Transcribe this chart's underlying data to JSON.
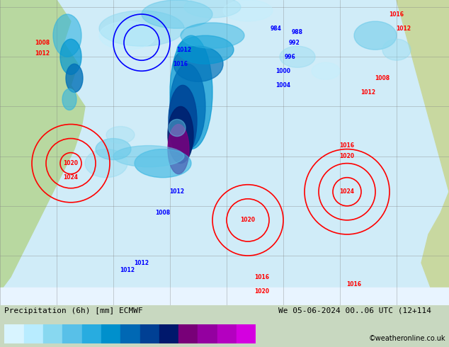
{
  "title_left": "Precipitation (6h) [mm] ECMWF",
  "title_right": "We 05-06-2024 00..06 UTC (12+114",
  "credit": "©weatheronline.co.uk",
  "colorbar_levels": [
    0.1,
    0.5,
    1,
    2,
    5,
    10,
    15,
    20,
    25,
    30,
    35,
    40,
    45,
    50
  ],
  "cb_colors": [
    "#d8f4ff",
    "#b8ecff",
    "#88d8f0",
    "#58c0e8",
    "#28ace0",
    "#0090cc",
    "#0068b4",
    "#004094",
    "#00186c",
    "#780078",
    "#9400a0",
    "#b400c0",
    "#d400e0",
    "#ff00ff"
  ],
  "figure_width": 6.34,
  "figure_height": 4.9,
  "dpi": 100,
  "precipitation_blobs": [
    [
      200,
      390,
      60,
      25,
      2,
      0.5
    ],
    [
      180,
      380,
      40,
      20,
      1,
      0.4
    ],
    [
      250,
      410,
      50,
      20,
      3,
      0.5
    ],
    [
      300,
      420,
      40,
      15,
      2,
      0.4
    ],
    [
      350,
      415,
      35,
      15,
      1,
      0.3
    ],
    [
      270,
      300,
      30,
      80,
      5,
      0.7
    ],
    [
      265,
      280,
      25,
      60,
      6,
      0.8
    ],
    [
      258,
      260,
      20,
      50,
      7,
      0.9
    ],
    [
      255,
      240,
      18,
      40,
      8,
      0.9
    ],
    [
      252,
      220,
      15,
      35,
      9,
      0.8
    ],
    [
      250,
      250,
      12,
      12,
      3,
      0.5
    ],
    [
      230,
      200,
      40,
      20,
      4,
      0.6
    ],
    [
      210,
      210,
      50,
      15,
      3,
      0.5
    ],
    [
      280,
      340,
      35,
      25,
      6,
      0.7
    ],
    [
      290,
      360,
      40,
      20,
      5,
      0.6
    ],
    [
      300,
      380,
      45,
      18,
      4,
      0.5
    ],
    [
      420,
      350,
      25,
      15,
      2,
      0.4
    ],
    [
      460,
      330,
      20,
      12,
      1,
      0.3
    ],
    [
      530,
      380,
      30,
      20,
      3,
      0.5
    ],
    [
      560,
      360,
      20,
      15,
      2,
      0.4
    ],
    [
      95,
      380,
      20,
      30,
      4,
      0.6
    ],
    [
      100,
      350,
      15,
      25,
      5,
      0.7
    ],
    [
      105,
      320,
      12,
      20,
      6,
      0.8
    ],
    [
      98,
      290,
      10,
      15,
      4,
      0.6
    ],
    [
      150,
      200,
      30,
      20,
      2,
      0.4
    ],
    [
      160,
      220,
      25,
      15,
      3,
      0.5
    ],
    [
      170,
      240,
      20,
      12,
      2,
      0.3
    ]
  ],
  "isobars": [
    [
      490,
      160,
      60,
      "red"
    ],
    [
      490,
      160,
      40,
      "red"
    ],
    [
      490,
      160,
      20,
      "red"
    ],
    [
      350,
      120,
      50,
      "red"
    ],
    [
      350,
      120,
      30,
      "red"
    ],
    [
      100,
      200,
      55,
      "red"
    ],
    [
      100,
      200,
      35,
      "red"
    ],
    [
      100,
      200,
      15,
      "red"
    ],
    [
      200,
      370,
      40,
      "blue"
    ],
    [
      200,
      370,
      25,
      "blue"
    ]
  ],
  "pressure_labels": [
    [
      490,
      160,
      "1024",
      "red"
    ],
    [
      490,
      210,
      "1020",
      "red"
    ],
    [
      490,
      225,
      "1016",
      "red"
    ],
    [
      350,
      120,
      "1020",
      "red"
    ],
    [
      100,
      200,
      "1020",
      "red"
    ],
    [
      100,
      180,
      "1024",
      "red"
    ],
    [
      60,
      370,
      "1008",
      "red"
    ],
    [
      60,
      355,
      "1012",
      "red"
    ],
    [
      250,
      160,
      "1012",
      "blue"
    ],
    [
      230,
      130,
      "1008",
      "blue"
    ],
    [
      255,
      340,
      "1016",
      "blue"
    ],
    [
      260,
      360,
      "1012",
      "blue"
    ],
    [
      520,
      300,
      "1012",
      "red"
    ],
    [
      540,
      320,
      "1008",
      "red"
    ],
    [
      400,
      310,
      "1004",
      "blue"
    ],
    [
      400,
      330,
      "1000",
      "blue"
    ],
    [
      410,
      350,
      "996",
      "blue"
    ],
    [
      415,
      370,
      "992",
      "blue"
    ],
    [
      420,
      385,
      "988",
      "blue"
    ],
    [
      390,
      390,
      "984",
      "blue"
    ],
    [
      200,
      60,
      "1012",
      "blue"
    ],
    [
      180,
      50,
      "1012",
      "blue"
    ],
    [
      370,
      40,
      "1016",
      "red"
    ],
    [
      370,
      20,
      "1020",
      "red"
    ],
    [
      500,
      30,
      "1016",
      "red"
    ],
    [
      560,
      410,
      "1016",
      "red"
    ],
    [
      570,
      390,
      "1012",
      "red"
    ]
  ]
}
